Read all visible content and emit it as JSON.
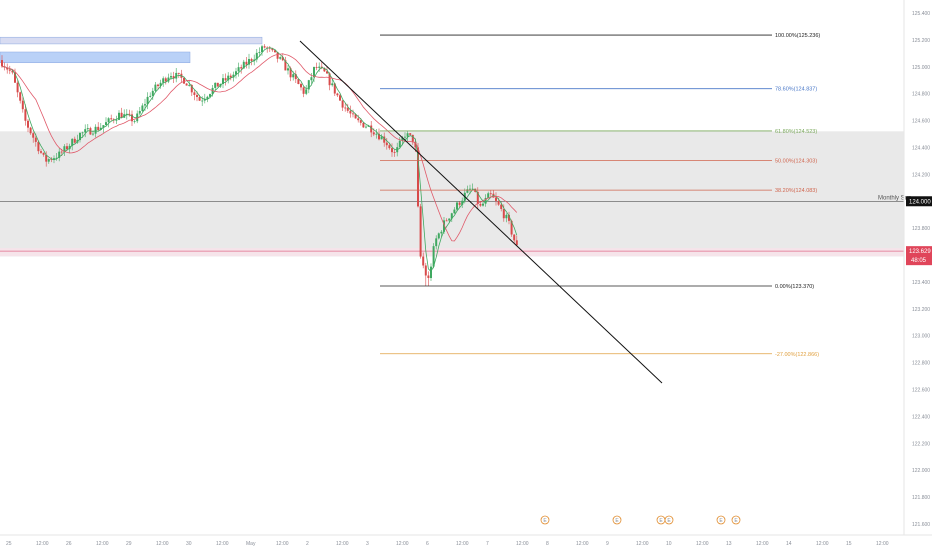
{
  "chart_data": {
    "type": "candlestick",
    "price_axis": {
      "ticks": [
        "125.400",
        "125.200",
        "125.000",
        "124.800",
        "124.600",
        "124.400",
        "124.200",
        "124.000",
        "123.800",
        "123.600",
        "123.400",
        "123.200",
        "123.000",
        "122.800",
        "122.600",
        "122.400",
        "122.200",
        "122.000",
        "121.800",
        "121.600"
      ],
      "ylim": [
        121.55,
        125.45
      ],
      "current_price": "123.629",
      "countdown": "48:05"
    },
    "time_axis": {
      "ticks": [
        "25",
        "12:00",
        "26",
        "12:00",
        "29",
        "12:00",
        "30",
        "12:00",
        "May",
        "12:00",
        "2",
        "12:00",
        "3",
        "12:00",
        "6",
        "12:00",
        "7",
        "12:00",
        "8",
        "12:00",
        "9",
        "12:00",
        "10",
        "12:00",
        "13",
        "12:00",
        "14",
        "12:00",
        "15",
        "12:00"
      ]
    },
    "monthly_support": {
      "price": 124.0,
      "label": "Monthly Sup",
      "value_label": "124.000"
    },
    "support_line_price": 123.629,
    "fibonacci": [
      {
        "label": "100.00%(125.236)",
        "price": 125.236,
        "color": "#222222"
      },
      {
        "label": "78.60%(124.837)",
        "price": 124.837,
        "color": "#4a78c8"
      },
      {
        "label": "61.80%(124.523)",
        "price": 124.523,
        "color": "#79a85a"
      },
      {
        "label": "50.00%(124.303)",
        "price": 124.303,
        "color": "#d0654e"
      },
      {
        "label": "38.20%(124.083)",
        "price": 124.083,
        "color": "#d0654e"
      },
      {
        "label": "0.00%(123.370)",
        "price": 123.37,
        "color": "#222222"
      },
      {
        "label": "-27.00%(122.866)",
        "price": 122.866,
        "color": "#e0a040"
      }
    ],
    "zones": [
      {
        "name": "demand-zone",
        "from": 124.52,
        "to": 123.59,
        "color": "#e9e9e9"
      },
      {
        "name": "upper-supply-zone",
        "from": 125.22,
        "to": 125.17,
        "color": "#d8dcf2"
      },
      {
        "name": "blue-supply-zone",
        "from": 125.11,
        "to": 125.03,
        "color": "#b9d1f7"
      }
    ],
    "trendline": {
      "from": [
        300,
        41
      ],
      "to": [
        662,
        383
      ]
    },
    "event_marks": [
      "E",
      "E",
      "E",
      "E",
      "E",
      "E"
    ],
    "candles_seed": 7
  }
}
